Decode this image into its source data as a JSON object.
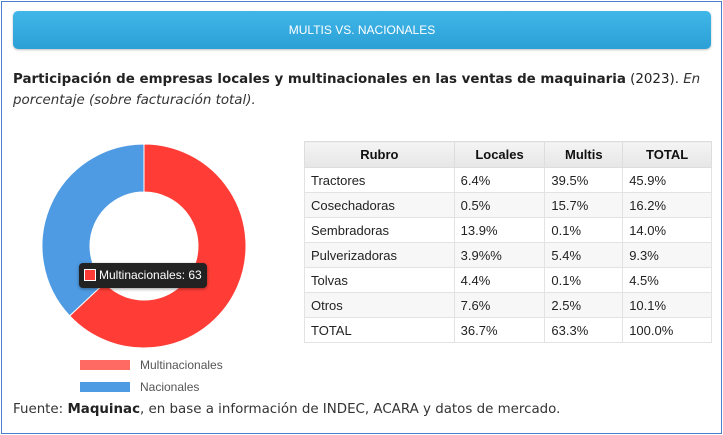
{
  "header": {
    "label": "MULTIS VS. NACIONALES"
  },
  "title": {
    "bold": "Participación de empresas locales y multinacionales en las ventas de maquinaria",
    "year": " (2023). ",
    "italic": "En porcentaje (sobre facturación total)."
  },
  "chart_data": {
    "type": "pie",
    "labels": [
      "Multinacionales",
      "Nacionales"
    ],
    "values": [
      63,
      37
    ],
    "colors": [
      "#ff3d36",
      "#4f9be3"
    ],
    "legend_position": "bottom",
    "tooltip": {
      "label": "Multinacionales: 63"
    }
  },
  "legend": [
    {
      "label": "Multinacionales",
      "color": "#ff6a63"
    },
    {
      "label": "Nacionales",
      "color": "#4f9be3"
    }
  ],
  "table": {
    "headers": [
      "Rubro",
      "Locales",
      "Multis",
      "TOTAL"
    ],
    "rows": [
      [
        "Tractores",
        "6.4%",
        "39.5%",
        "45.9%"
      ],
      [
        "Cosechadoras",
        "0.5%",
        "15.7%",
        "16.2%"
      ],
      [
        "Sembradoras",
        "13.9%",
        "0.1%",
        "14.0%"
      ],
      [
        "Pulverizadoras",
        "3.9%%",
        "5.4%",
        "9.3%"
      ],
      [
        "Tolvas",
        "4.4%",
        "0.1%",
        "4.5%"
      ],
      [
        "Otros",
        "7.6%",
        "2.5%",
        "10.1%"
      ],
      [
        "TOTAL",
        "36.7%",
        "63.3%",
        "100.0%"
      ]
    ]
  },
  "source": {
    "prefix": "Fuente: ",
    "bold": "Maquinac",
    "rest": ", en base a información de INDEC, ACARA y datos de mercado."
  }
}
